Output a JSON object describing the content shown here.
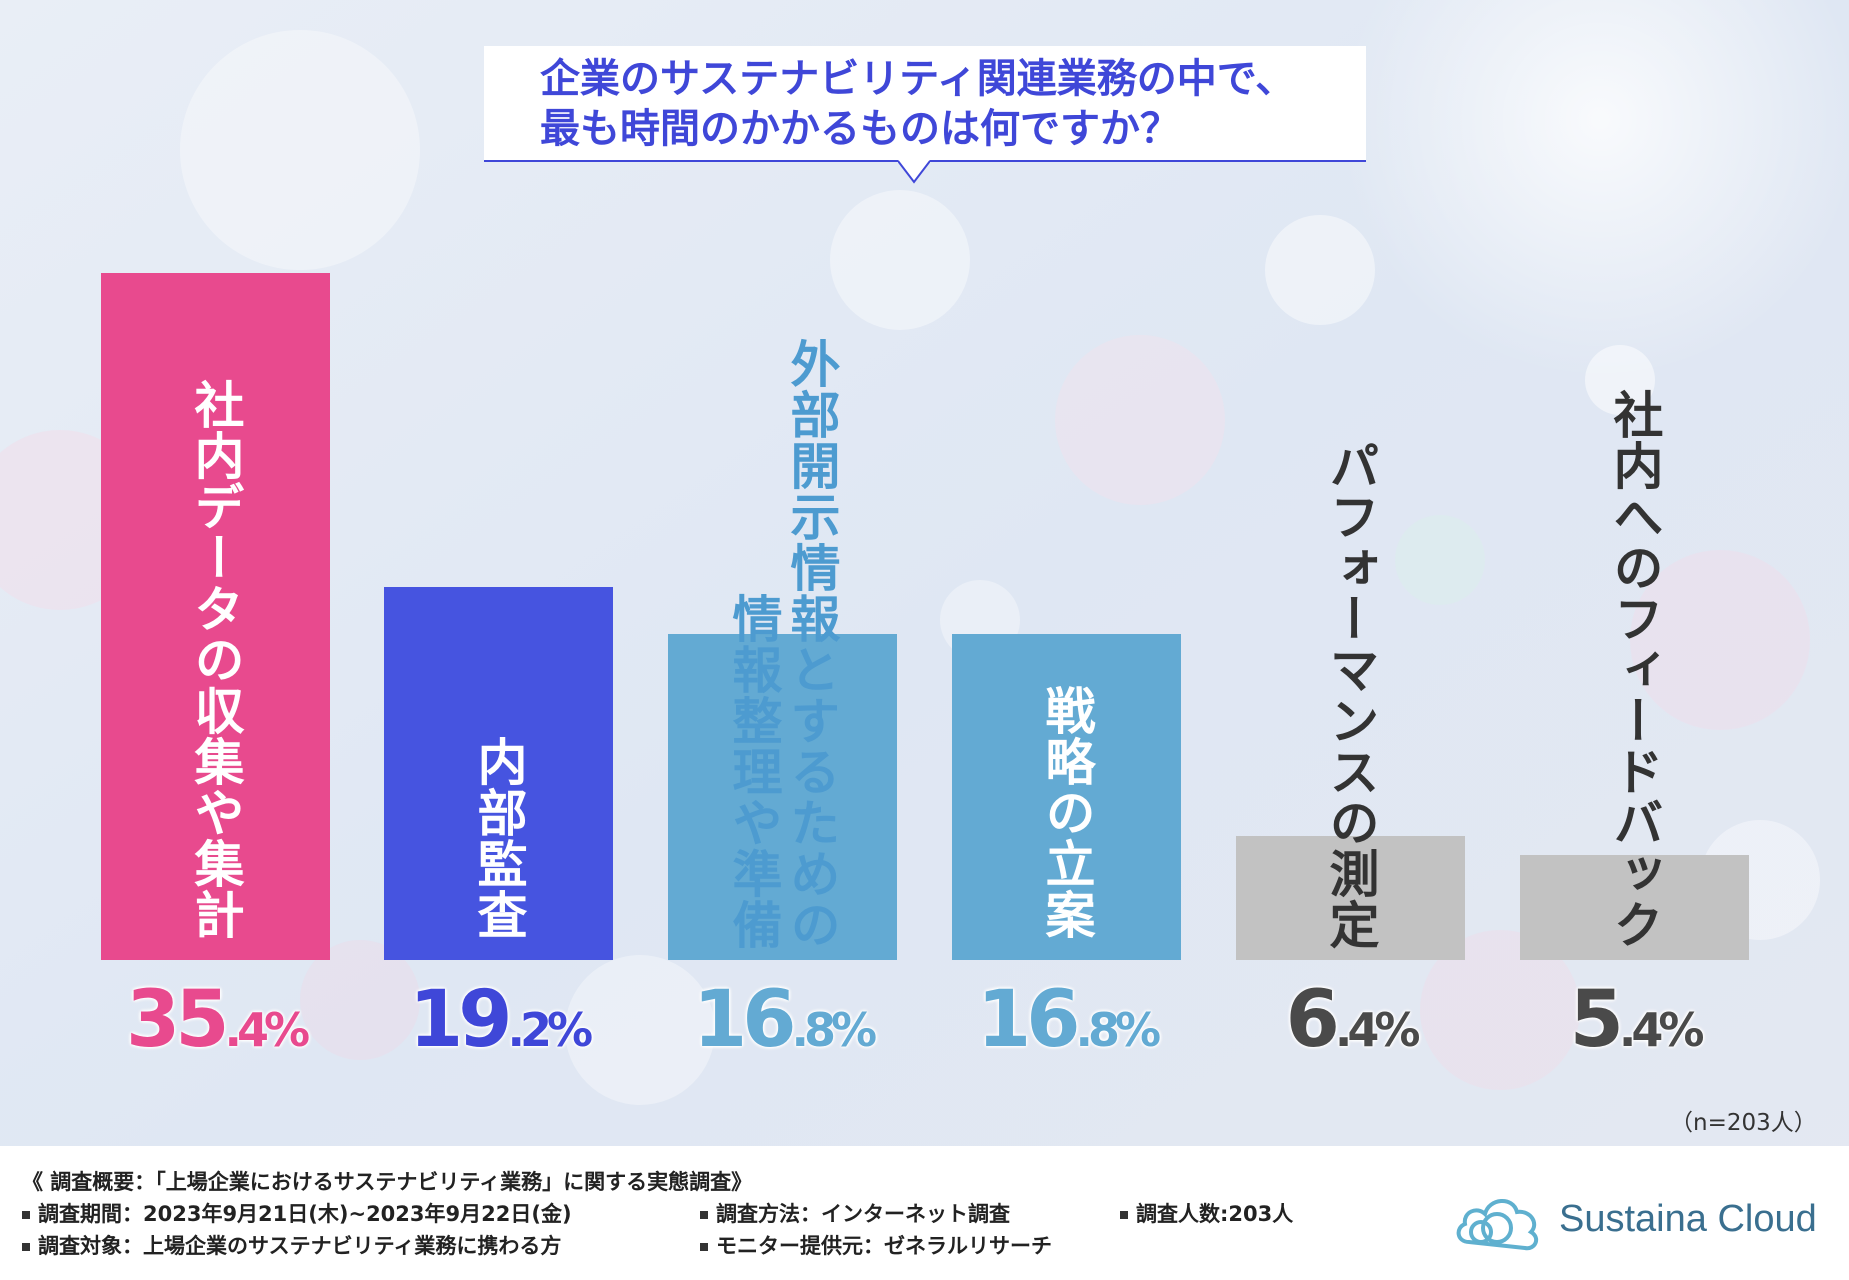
{
  "question": {
    "line1": "企業のサステナビリティ関連業務の中で、",
    "line2": "最も時間のかかるものは何ですか？"
  },
  "chart_data": {
    "type": "bar",
    "title": "企業のサステナビリティ関連業務の中で、最も時間のかかるものは何ですか？",
    "categories": [
      "社内データの収集や集計",
      "内部監査",
      "外部開示情報とするための情報整理や準備",
      "戦略の立案",
      "パフォーマンスの測定",
      "社内へのフィードバック"
    ],
    "values": [
      35.4,
      19.2,
      16.8,
      16.8,
      6.4,
      5.4
    ],
    "value_labels": [
      {
        "int": "35",
        "dec": ".4%"
      },
      {
        "int": "19",
        "dec": ".2%"
      },
      {
        "int": "16",
        "dec": ".8%"
      },
      {
        "int": "16",
        "dec": ".8%"
      },
      {
        "int": "6",
        "dec": ".4%"
      },
      {
        "int": "5",
        "dec": ".4%"
      }
    ],
    "bar_colors": [
      "#e84a8e",
      "#4654e0",
      "#63aad3",
      "#63aad3",
      "#c2c2c2",
      "#c2c2c2"
    ],
    "label_colors": [
      "#ffffff",
      "#ffffff",
      "#4d9bd0",
      "#ffffff",
      "#333333",
      "#333333"
    ],
    "value_colors": [
      "#e84a8e",
      "#3f47d8",
      "#63aad3",
      "#63aad3",
      "#4a4a4a",
      "#4a4a4a"
    ],
    "label_lines": [
      [
        "社内データの収集や集計"
      ],
      [
        "内部監査"
      ],
      [
        "外部開示情報とするための",
        "情報整理や準備"
      ],
      [
        "戦略の立案"
      ],
      [
        "パフォーマンスの測定"
      ],
      [
        "社内へのフィードバック"
      ]
    ],
    "ylim": [
      0,
      35.4
    ],
    "xlabel": "",
    "ylabel": "",
    "grid": false,
    "legend": "none"
  },
  "sample_size": "（n=203人）",
  "survey": {
    "title": "《 調査概要：「上場企業におけるサステナビリティ業務」に関する実態調査》",
    "period": "調査期間：2023年9月21日(木)~2023年9月22日(金)",
    "target": "調査対象：上場企業のサステナビリティ業務に携わる方",
    "method": "調査方法：インターネット調査",
    "provider": "モニター提供元：ゼネラルリサーチ",
    "count": "調査人数:203人"
  },
  "brand": {
    "name": "Sustaina Cloud",
    "color": "#3a6f8f"
  },
  "colors": {
    "accent": "#3f47d8"
  }
}
